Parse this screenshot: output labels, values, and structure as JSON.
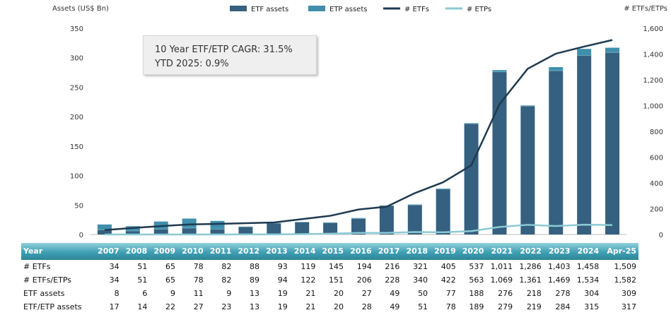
{
  "chart_data": {
    "type": "bar+line",
    "years": [
      "2007",
      "2008",
      "2009",
      "2010",
      "2011",
      "2012",
      "2013",
      "2014",
      "2015",
      "2016",
      "2017",
      "2018",
      "2019",
      "2020",
      "2021",
      "2022",
      "2023",
      "2024",
      "Apr-25"
    ],
    "etf_assets": [
      8,
      6,
      9,
      11,
      9,
      13,
      19,
      21,
      20,
      27,
      49,
      50,
      77,
      188,
      276,
      218,
      278,
      304,
      309
    ],
    "etf_etp_assets": [
      17,
      14,
      22,
      27,
      23,
      13,
      19,
      21,
      20,
      28,
      49,
      51,
      78,
      189,
      279,
      219,
      284,
      315,
      317
    ],
    "num_etfs": [
      34,
      51,
      65,
      78,
      82,
      88,
      93,
      119,
      145,
      194,
      216,
      321,
      405,
      537,
      1011,
      1286,
      1403,
      1458,
      1509
    ],
    "num_etfs_etps": [
      34,
      51,
      65,
      78,
      82,
      89,
      94,
      122,
      151,
      206,
      228,
      340,
      422,
      563,
      1069,
      1361,
      1469,
      1534,
      1582
    ],
    "num_etps": [
      0,
      0,
      0,
      0,
      0,
      1,
      1,
      3,
      6,
      12,
      12,
      19,
      17,
      26,
      58,
      75,
      66,
      76,
      73
    ],
    "left_axis": {
      "label": "Assets (US$ Bn)",
      "ticks": [
        0,
        50,
        100,
        150,
        200,
        250,
        300,
        350
      ],
      "range": [
        0,
        350
      ]
    },
    "right_axis": {
      "label": "# ETFs/ETPs",
      "ticks": [
        "0",
        "200",
        "400",
        "600",
        "800",
        "1,000",
        "1,200",
        "1,400",
        "1,600"
      ],
      "range": [
        0,
        1600
      ]
    },
    "legend": [
      {
        "label": "ETF assets",
        "type": "bar",
        "color": "#35607f"
      },
      {
        "label": "ETP assets",
        "type": "bar",
        "color": "#3f8fad"
      },
      {
        "label": "# ETFs",
        "type": "line",
        "color": "#1f3a50"
      },
      {
        "label": "# ETPs",
        "type": "line",
        "color": "#8ccad5"
      }
    ],
    "legend_position": "top",
    "grid": false
  },
  "annotation": {
    "line1": "10 Year ETF/ETP CAGR: 31.5%",
    "line2": "YTD 2025: 0.9%"
  },
  "table": {
    "header_label": "Year",
    "columns": [
      "2007",
      "2008",
      "2009",
      "2010",
      "2011",
      "2012",
      "2013",
      "2014",
      "2015",
      "2016",
      "2017",
      "2018",
      "2019",
      "2020",
      "2021",
      "2022",
      "2023",
      "2024",
      "Apr-25"
    ],
    "rows": [
      {
        "label": "# ETFs",
        "values": [
          "34",
          "51",
          "65",
          "78",
          "82",
          "88",
          "93",
          "119",
          "145",
          "194",
          "216",
          "321",
          "405",
          "537",
          "1,011",
          "1,286",
          "1,403",
          "1,458",
          "1,509"
        ]
      },
      {
        "label": "# ETFs/ETPs",
        "values": [
          "34",
          "51",
          "65",
          "78",
          "82",
          "89",
          "94",
          "122",
          "151",
          "206",
          "228",
          "340",
          "422",
          "563",
          "1,069",
          "1,361",
          "1,469",
          "1,534",
          "1,582"
        ]
      },
      {
        "label": "ETF assets",
        "values": [
          "8",
          "6",
          "9",
          "11",
          "9",
          "13",
          "19",
          "21",
          "20",
          "27",
          "49",
          "50",
          "77",
          "188",
          "276",
          "218",
          "278",
          "304",
          "309"
        ]
      },
      {
        "label": "ETF/ETP assets",
        "values": [
          "17",
          "14",
          "22",
          "27",
          "23",
          "13",
          "19",
          "21",
          "20",
          "28",
          "49",
          "51",
          "78",
          "189",
          "279",
          "219",
          "284",
          "315",
          "317"
        ]
      }
    ]
  }
}
